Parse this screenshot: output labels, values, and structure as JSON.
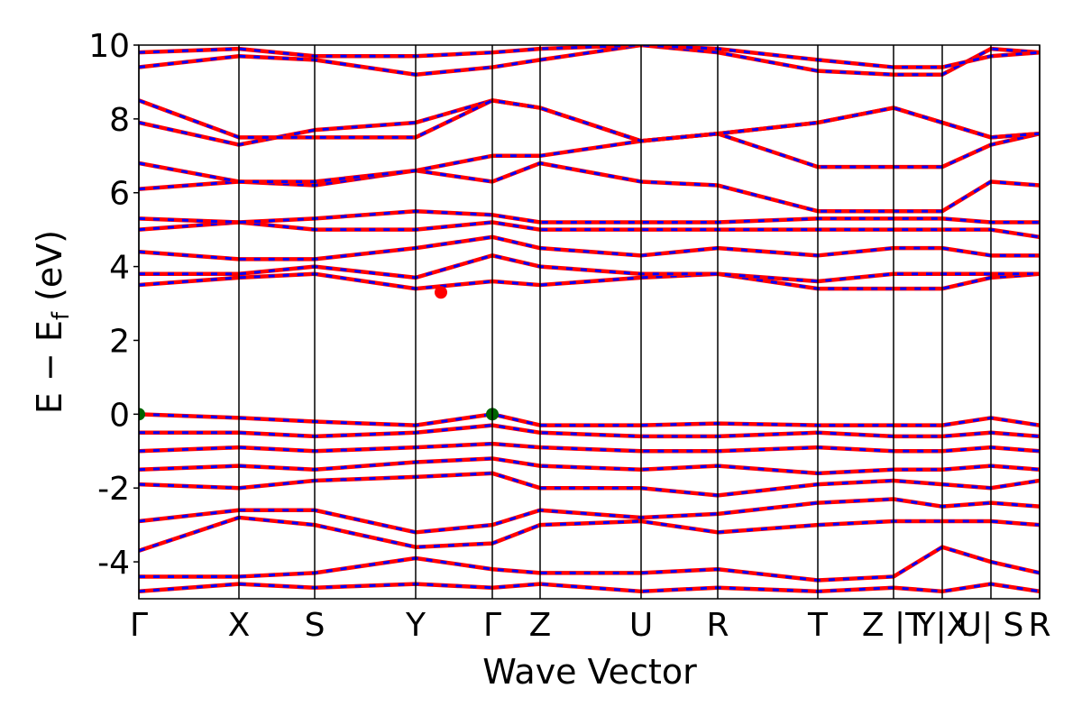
{
  "chart_data": {
    "type": "bands",
    "xlabel": "Wave Vector",
    "ylabel": {
      "text": "E − E",
      "sub": "f",
      "after": " (eV)"
    },
    "ylim": [
      -5,
      10
    ],
    "yticks": [
      -4,
      -2,
      0,
      2,
      4,
      6,
      8,
      10
    ],
    "xlim": [
      0,
      9.99
    ],
    "xticks": [
      {
        "value": 0,
        "label": "Γ"
      },
      {
        "value": 1.11,
        "label": "X"
      },
      {
        "value": 1.95,
        "label": "S"
      },
      {
        "value": 3.07,
        "label": "Y"
      },
      {
        "value": 3.92,
        "label": "Γ"
      },
      {
        "value": 4.45,
        "label": "Z"
      },
      {
        "value": 5.57,
        "label": "U"
      },
      {
        "value": 6.42,
        "label": "R"
      },
      {
        "value": 7.53,
        "label": "T"
      },
      {
        "value": 8.37,
        "label": "Z |T"
      },
      {
        "value": 8.91,
        "label": "Y|X"
      },
      {
        "value": 9.45,
        "label": "U| S"
      },
      {
        "value": 9.99,
        "label": "R"
      }
    ],
    "x": [
      0,
      1.11,
      1.95,
      3.07,
      3.92,
      4.45,
      5.57,
      6.42,
      7.53,
      8.37,
      8.91,
      9.45,
      9.99
    ],
    "line_color": "#ff0000",
    "dash_color": "#0000ff",
    "series": [
      {
        "values": [
          0,
          -0.1,
          -0.2,
          -0.3,
          0,
          -0.3,
          -0.3,
          -0.25,
          -0.3,
          -0.3,
          -0.3,
          -0.1,
          -0.3
        ]
      },
      {
        "values": [
          -0.5,
          -0.5,
          -0.6,
          -0.5,
          -0.3,
          -0.5,
          -0.6,
          -0.6,
          -0.5,
          -0.6,
          -0.6,
          -0.5,
          -0.6
        ]
      },
      {
        "values": [
          -1.0,
          -0.9,
          -1.0,
          -0.9,
          -0.8,
          -0.9,
          -1.0,
          -1.0,
          -0.9,
          -1.0,
          -1.0,
          -0.9,
          -1.0
        ]
      },
      {
        "values": [
          -1.5,
          -1.4,
          -1.5,
          -1.3,
          -1.2,
          -1.4,
          -1.5,
          -1.4,
          -1.6,
          -1.5,
          -1.5,
          -1.4,
          -1.5
        ]
      },
      {
        "values": [
          -1.9,
          -2.0,
          -1.8,
          -1.7,
          -1.6,
          -2.0,
          -2.0,
          -2.2,
          -1.9,
          -1.8,
          -1.9,
          -2.0,
          -1.8
        ]
      },
      {
        "values": [
          -2.9,
          -2.6,
          -2.6,
          -3.2,
          -3.0,
          -2.6,
          -2.8,
          -2.7,
          -2.4,
          -2.3,
          -2.5,
          -2.4,
          -2.5
        ]
      },
      {
        "values": [
          -3.7,
          -2.8,
          -3.0,
          -3.6,
          -3.5,
          -3.0,
          -2.9,
          -3.2,
          -3.0,
          -2.9,
          -2.9,
          -2.9,
          -3.0
        ]
      },
      {
        "values": [
          -4.4,
          -4.4,
          -4.3,
          -3.9,
          -4.2,
          -4.3,
          -4.3,
          -4.2,
          -4.5,
          -4.4,
          -3.6,
          -4.0,
          -4.3
        ]
      },
      {
        "values": [
          -4.8,
          -4.6,
          -4.7,
          -4.6,
          -4.7,
          -4.6,
          -4.8,
          -4.7,
          -4.8,
          -4.7,
          -4.8,
          -4.6,
          -4.8
        ]
      },
      {
        "values": [
          3.5,
          3.7,
          3.8,
          3.4,
          3.6,
          3.5,
          3.7,
          3.8,
          3.4,
          3.4,
          3.4,
          3.7,
          3.8
        ]
      },
      {
        "values": [
          3.8,
          3.8,
          4.0,
          3.7,
          4.3,
          4.0,
          3.8,
          3.8,
          3.6,
          3.8,
          3.8,
          3.8,
          3.8
        ]
      },
      {
        "values": [
          4.4,
          4.2,
          4.2,
          4.5,
          4.8,
          4.5,
          4.3,
          4.5,
          4.3,
          4.5,
          4.5,
          4.3,
          4.3
        ]
      },
      {
        "values": [
          5.0,
          5.2,
          5.0,
          5.0,
          5.2,
          5.0,
          5.0,
          5.0,
          5.0,
          5.0,
          5.0,
          5.0,
          4.8
        ]
      },
      {
        "values": [
          5.3,
          5.2,
          5.3,
          5.5,
          5.4,
          5.2,
          5.2,
          5.2,
          5.3,
          5.3,
          5.3,
          5.2,
          5.2
        ]
      },
      {
        "values": [
          6.1,
          6.3,
          6.2,
          6.6,
          6.3,
          6.8,
          6.3,
          6.2,
          5.5,
          5.5,
          5.5,
          6.3,
          6.2
        ]
      },
      {
        "values": [
          6.8,
          6.3,
          6.3,
          6.6,
          7.0,
          7.0,
          7.4,
          7.6,
          6.7,
          6.7,
          6.7,
          7.3,
          7.6
        ]
      },
      {
        "values": [
          7.9,
          7.3,
          7.7,
          7.9,
          8.5,
          8.3,
          7.4,
          7.6,
          7.9,
          8.3,
          7.9,
          7.5,
          7.6
        ]
      },
      {
        "values": [
          8.5,
          7.5,
          7.5,
          7.5,
          8.5,
          8.3,
          7.4,
          7.6,
          7.9,
          8.3,
          7.9,
          7.5,
          7.6
        ]
      },
      {
        "values": [
          9.4,
          9.7,
          9.6,
          9.2,
          9.4,
          9.6,
          10,
          9.8,
          9.3,
          9.2,
          9.2,
          9.9,
          9.8
        ]
      },
      {
        "values": [
          9.8,
          9.9,
          9.7,
          9.7,
          9.8,
          9.9,
          10,
          9.9,
          9.6,
          9.4,
          9.4,
          9.7,
          9.8
        ]
      }
    ],
    "markers": [
      {
        "x": 0,
        "y": 0,
        "color": "#006400"
      },
      {
        "x": 3.92,
        "y": 0,
        "color": "#006400"
      },
      {
        "x": 3.35,
        "y": 3.3,
        "color": "#ff0000"
      }
    ]
  }
}
